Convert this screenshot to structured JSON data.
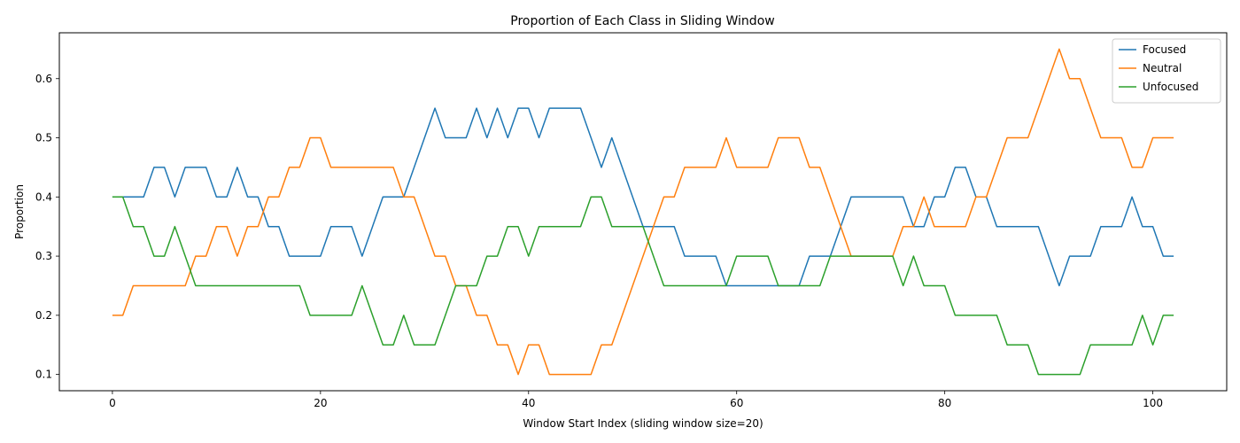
{
  "chart_data": {
    "type": "line",
    "title": "Proportion of Each Class in Sliding Window",
    "xlabel": "Window Start Index (sliding window size=20)",
    "ylabel": "Proportion",
    "xlim": [
      -5.1,
      107.1
    ],
    "ylim": [
      0.0725,
      0.6775
    ],
    "xticks": [
      0,
      20,
      40,
      60,
      80,
      100
    ],
    "yticks": [
      0.1,
      0.2,
      0.3,
      0.4,
      0.5,
      0.6
    ],
    "xtick_labels": [
      "0",
      "20",
      "40",
      "60",
      "80",
      "100"
    ],
    "ytick_labels": [
      "0.1",
      "0.2",
      "0.3",
      "0.4",
      "0.5",
      "0.6"
    ],
    "grid": false,
    "legend_position": "top-right",
    "x": [
      0,
      1,
      2,
      3,
      4,
      5,
      6,
      7,
      8,
      9,
      10,
      11,
      12,
      13,
      14,
      15,
      16,
      17,
      18,
      19,
      20,
      21,
      22,
      23,
      24,
      25,
      26,
      27,
      28,
      29,
      30,
      31,
      32,
      33,
      34,
      35,
      36,
      37,
      38,
      39,
      40,
      41,
      42,
      43,
      44,
      45,
      46,
      47,
      48,
      49,
      50,
      51,
      52,
      53,
      54,
      55,
      56,
      57,
      58,
      59,
      60,
      61,
      62,
      63,
      64,
      65,
      66,
      67,
      68,
      69,
      70,
      71,
      72,
      73,
      74,
      75,
      76,
      77,
      78,
      79,
      80,
      81,
      82,
      83,
      84,
      85,
      86,
      87,
      88,
      89,
      90,
      91,
      92,
      93,
      94,
      95,
      96,
      97,
      98,
      99,
      100,
      101,
      102
    ],
    "series": [
      {
        "name": "Focused",
        "color": "#1f77b4",
        "values": [
          0.4,
          0.4,
          0.4,
          0.4,
          0.45,
          0.45,
          0.4,
          0.45,
          0.45,
          0.45,
          0.4,
          0.4,
          0.45,
          0.4,
          0.4,
          0.35,
          0.35,
          0.3,
          0.3,
          0.3,
          0.3,
          0.35,
          0.35,
          0.35,
          0.3,
          0.35,
          0.4,
          0.4,
          0.4,
          0.45,
          0.5,
          0.55,
          0.5,
          0.5,
          0.5,
          0.55,
          0.5,
          0.55,
          0.5,
          0.55,
          0.55,
          0.5,
          0.55,
          0.55,
          0.55,
          0.55,
          0.5,
          0.45,
          0.5,
          0.45,
          0.4,
          0.35,
          0.35,
          0.35,
          0.35,
          0.3,
          0.3,
          0.3,
          0.3,
          0.25,
          0.25,
          0.25,
          0.25,
          0.25,
          0.25,
          0.25,
          0.25,
          0.3,
          0.3,
          0.3,
          0.35,
          0.4,
          0.4,
          0.4,
          0.4,
          0.4,
          0.4,
          0.35,
          0.35,
          0.4,
          0.4,
          0.45,
          0.45,
          0.4,
          0.4,
          0.35,
          0.35,
          0.35,
          0.35,
          0.35,
          0.3,
          0.25,
          0.3,
          0.3,
          0.3,
          0.35,
          0.35,
          0.35,
          0.4,
          0.35,
          0.35,
          0.3,
          0.3
        ]
      },
      {
        "name": "Neutral",
        "color": "#ff7f0e",
        "values": [
          0.2,
          0.2,
          0.25,
          0.25,
          0.25,
          0.25,
          0.25,
          0.25,
          0.3,
          0.3,
          0.35,
          0.35,
          0.3,
          0.35,
          0.35,
          0.4,
          0.4,
          0.45,
          0.45,
          0.5,
          0.5,
          0.45,
          0.45,
          0.45,
          0.45,
          0.45,
          0.45,
          0.45,
          0.4,
          0.4,
          0.35,
          0.3,
          0.3,
          0.25,
          0.25,
          0.2,
          0.2,
          0.15,
          0.15,
          0.1,
          0.15,
          0.15,
          0.1,
          0.1,
          0.1,
          0.1,
          0.1,
          0.15,
          0.15,
          0.2,
          0.25,
          0.3,
          0.35,
          0.4,
          0.4,
          0.45,
          0.45,
          0.45,
          0.45,
          0.5,
          0.45,
          0.45,
          0.45,
          0.45,
          0.5,
          0.5,
          0.5,
          0.45,
          0.45,
          0.4,
          0.35,
          0.3,
          0.3,
          0.3,
          0.3,
          0.3,
          0.35,
          0.35,
          0.4,
          0.35,
          0.35,
          0.35,
          0.35,
          0.4,
          0.4,
          0.45,
          0.5,
          0.5,
          0.5,
          0.55,
          0.6,
          0.65,
          0.6,
          0.6,
          0.55,
          0.5,
          0.5,
          0.5,
          0.45,
          0.45,
          0.5,
          0.5,
          0.5
        ]
      },
      {
        "name": "Unfocused",
        "color": "#2ca02c",
        "values": [
          0.4,
          0.4,
          0.35,
          0.35,
          0.3,
          0.3,
          0.35,
          0.3,
          0.25,
          0.25,
          0.25,
          0.25,
          0.25,
          0.25,
          0.25,
          0.25,
          0.25,
          0.25,
          0.25,
          0.2,
          0.2,
          0.2,
          0.2,
          0.2,
          0.25,
          0.2,
          0.15,
          0.15,
          0.2,
          0.15,
          0.15,
          0.15,
          0.2,
          0.25,
          0.25,
          0.25,
          0.3,
          0.3,
          0.35,
          0.35,
          0.3,
          0.35,
          0.35,
          0.35,
          0.35,
          0.35,
          0.4,
          0.4,
          0.35,
          0.35,
          0.35,
          0.35,
          0.3,
          0.25,
          0.25,
          0.25,
          0.25,
          0.25,
          0.25,
          0.25,
          0.3,
          0.3,
          0.3,
          0.3,
          0.25,
          0.25,
          0.25,
          0.25,
          0.25,
          0.3,
          0.3,
          0.3,
          0.3,
          0.3,
          0.3,
          0.3,
          0.25,
          0.3,
          0.25,
          0.25,
          0.25,
          0.2,
          0.2,
          0.2,
          0.2,
          0.2,
          0.15,
          0.15,
          0.15,
          0.1,
          0.1,
          0.1,
          0.1,
          0.1,
          0.15,
          0.15,
          0.15,
          0.15,
          0.15,
          0.2,
          0.15,
          0.2,
          0.2
        ]
      }
    ]
  }
}
